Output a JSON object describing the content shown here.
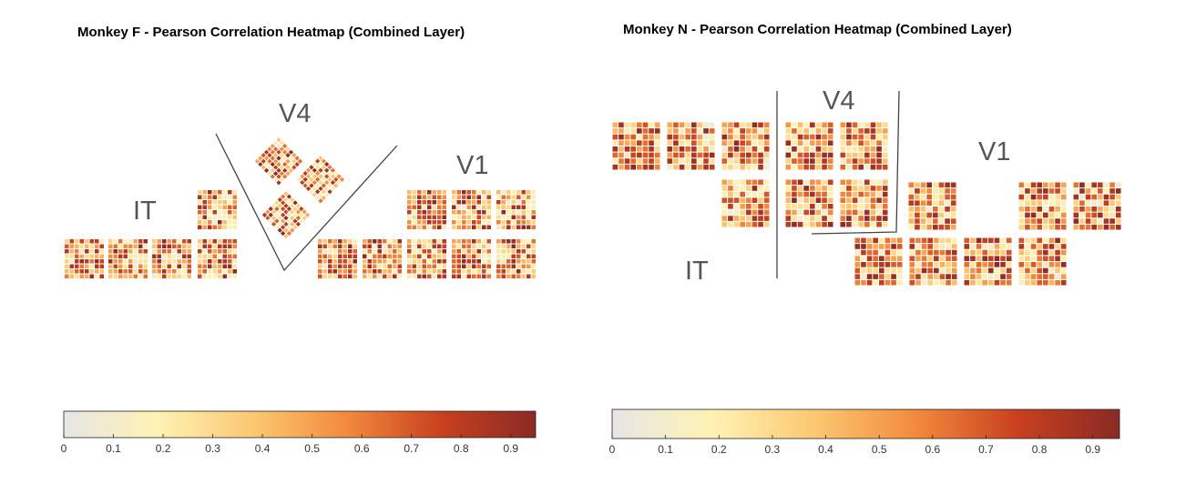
{
  "chart_data": [
    {
      "type": "heatmap",
      "title": "Monkey F - Pearson Correlation Heatmap (Combined Layer)",
      "colormap": [
        "#e6e6e6",
        "#fff2b3",
        "#fcc871",
        "#f28a3c",
        "#c8401f",
        "#8a2a25"
      ],
      "colorbar": {
        "range": [
          0,
          0.95
        ],
        "ticks": [
          "0",
          "0.1",
          "0.2",
          "0.3",
          "0.4",
          "0.5",
          "0.6",
          "0.7",
          "0.8",
          "0.9"
        ],
        "orientation": "horizontal",
        "placement": "bottom"
      },
      "regions": [
        "IT",
        "V4",
        "V1"
      ],
      "arrays": {
        "IT": 5,
        "V4": 3,
        "V1": 8
      },
      "grid": "8x8 electrodes per array"
    },
    {
      "type": "heatmap",
      "title": "Monkey N - Pearson Correlation Heatmap (Combined Layer)",
      "colormap": [
        "#e6e6e6",
        "#fff2b3",
        "#fcc871",
        "#f28a3c",
        "#c8401f",
        "#8a2a25"
      ],
      "colorbar": {
        "range": [
          0,
          0.95
        ],
        "ticks": [
          "0",
          "0.1",
          "0.2",
          "0.3",
          "0.4",
          "0.5",
          "0.6",
          "0.7",
          "0.8",
          "0.9"
        ],
        "orientation": "horizontal",
        "placement": "bottom"
      },
      "regions": [
        "IT",
        "V4",
        "V1"
      ],
      "arrays": {
        "IT": 4,
        "V4": 4,
        "V1": 8
      },
      "grid": "8x8 electrodes per array"
    }
  ],
  "labels": {
    "it": "IT",
    "v4": "V4",
    "v1": "V1"
  }
}
